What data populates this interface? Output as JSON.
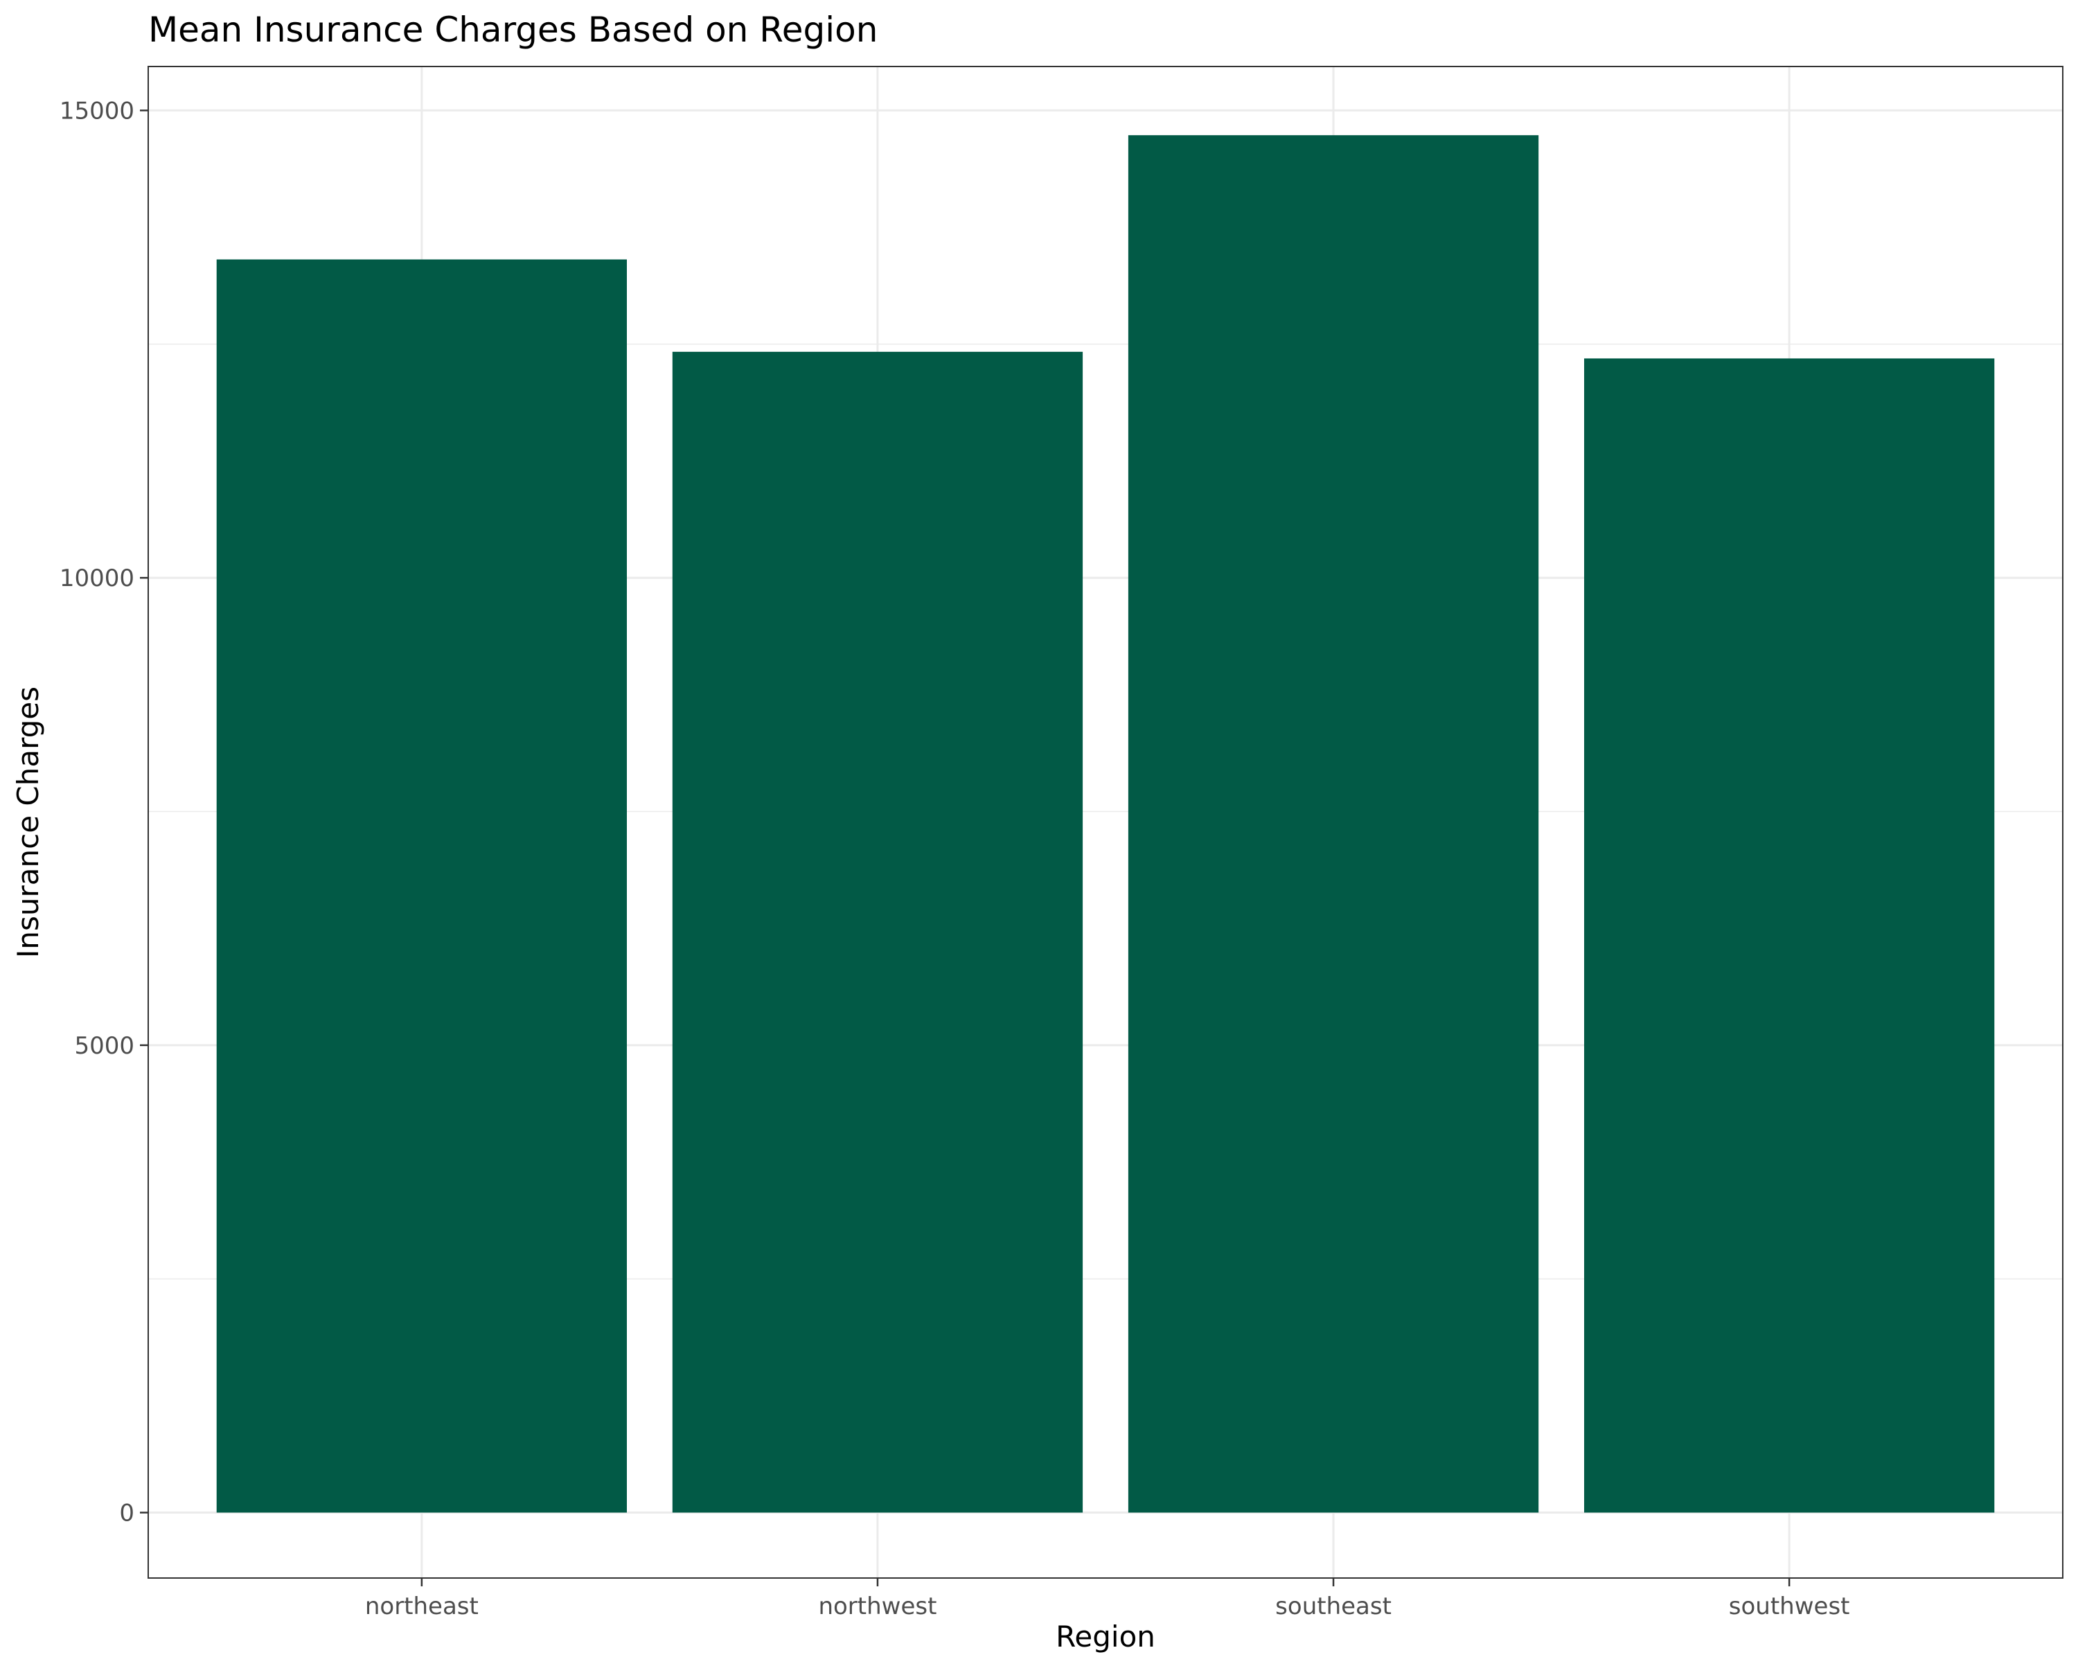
{
  "chart_data": {
    "type": "bar",
    "title": "Mean Insurance Charges Based on Region",
    "xlabel": "Region",
    "ylabel": "Insurance Charges",
    "categories": [
      "northeast",
      "northwest",
      "southeast",
      "southwest"
    ],
    "values": [
      13406,
      12418,
      14735,
      12347
    ],
    "ylim": [
      -700,
      15470
    ],
    "yticks": [
      0,
      5000,
      10000,
      15000
    ],
    "ytick_labels": [
      "0",
      "5000",
      "10000",
      "15000"
    ],
    "y_minor_ticks": [
      2500,
      7500,
      12500
    ],
    "grid": true,
    "legend": "none",
    "colors": {
      "bar": "#025a46",
      "grid": "#ebebeb",
      "panel_border": "#333333",
      "tick_text": "#4d4d4d"
    }
  }
}
